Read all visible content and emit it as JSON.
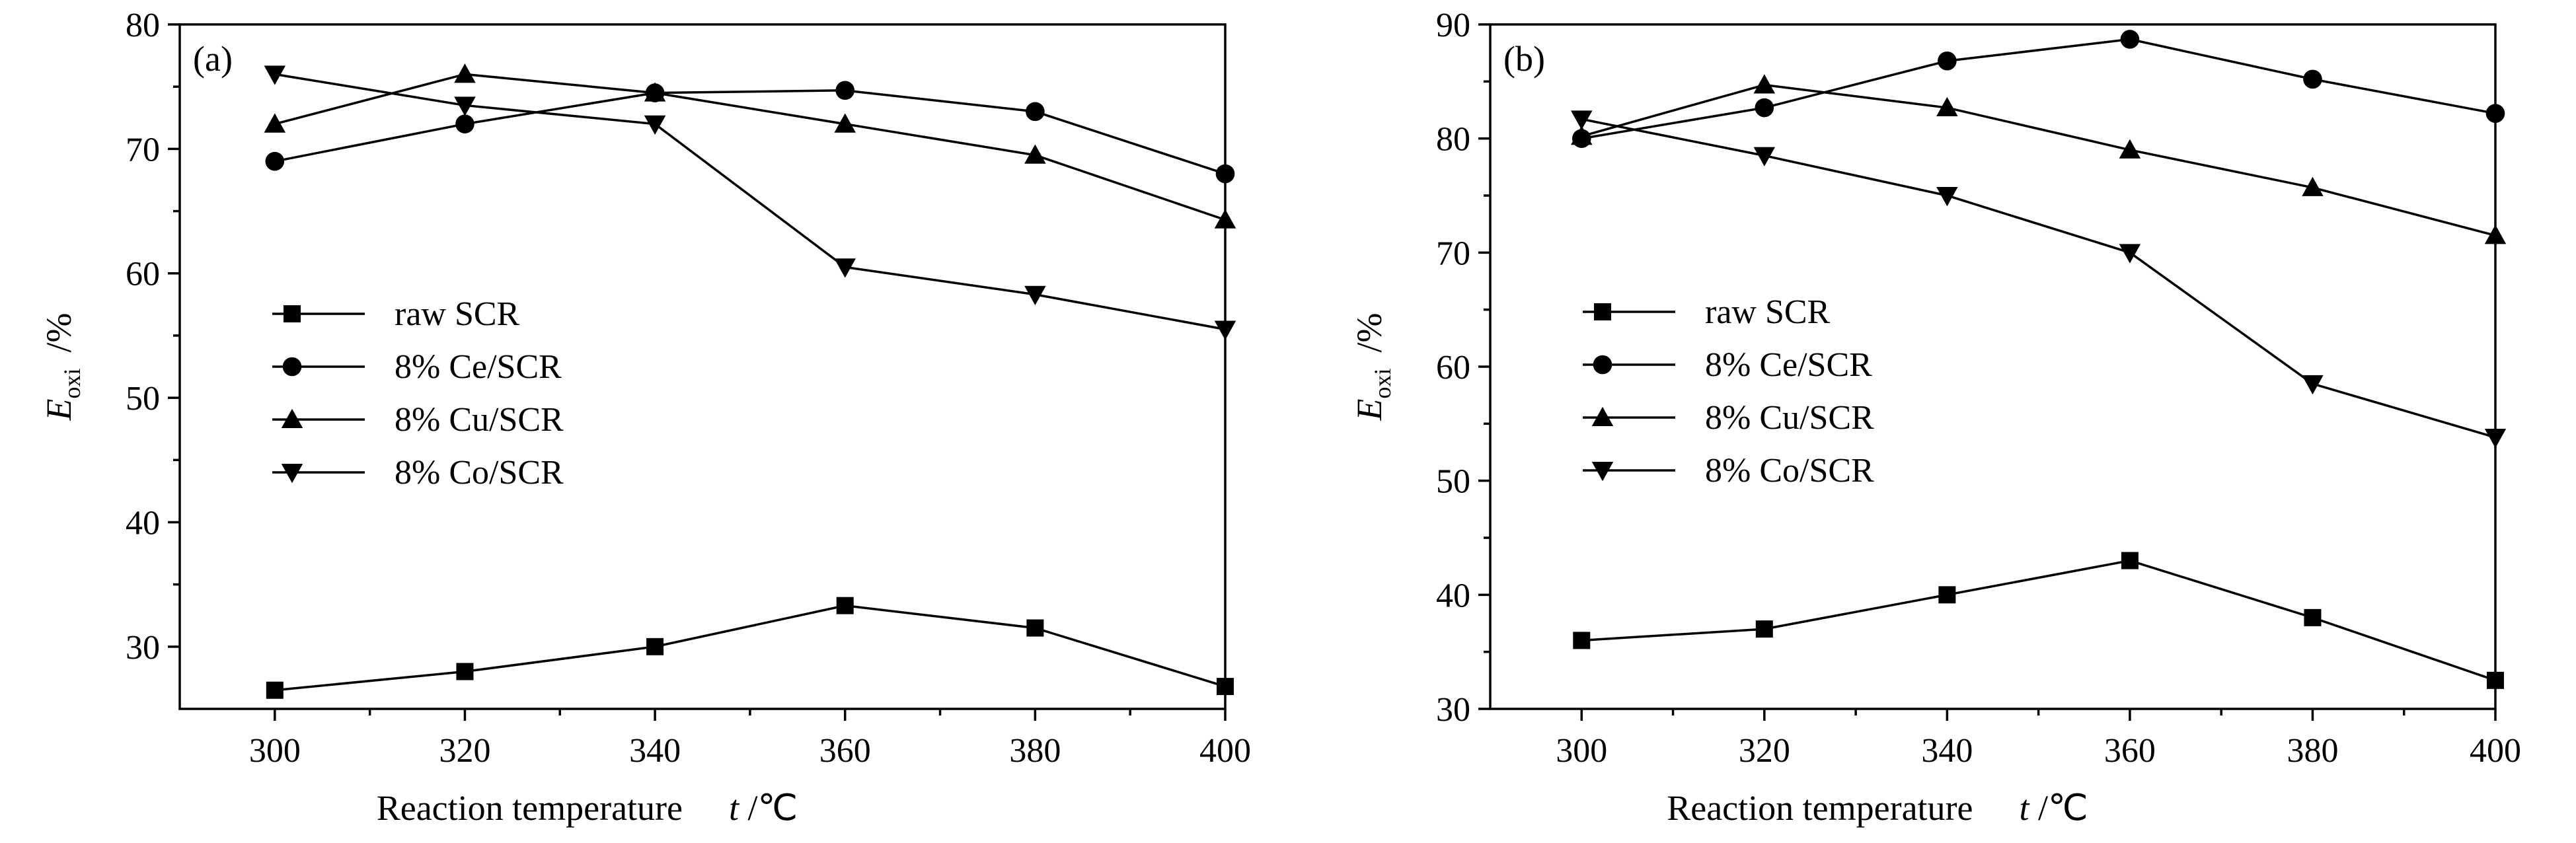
{
  "chart_data": [
    {
      "type": "line",
      "panel_label": "(a)",
      "xlabel": "Reaction temperature",
      "xunit_symbol": "t",
      "xunit": " /℃",
      "ylabel_symbol": "E",
      "ylabel_subscript": "oxi",
      "ylabel_unit": "/%",
      "x": [
        300,
        320,
        340,
        360,
        380,
        400
      ],
      "xticks": [
        300,
        320,
        340,
        360,
        380,
        400
      ],
      "xlim": [
        290,
        400
      ],
      "ylim": [
        25,
        80
      ],
      "yticks": [
        30,
        40,
        50,
        60,
        70,
        80
      ],
      "legend_position": "center-left",
      "series": [
        {
          "name": "raw SCR",
          "marker": "square",
          "values": [
            26.5,
            28,
            30,
            33.3,
            31.5,
            26.8
          ]
        },
        {
          "name": "8% Ce/SCR",
          "marker": "circle",
          "values": [
            69,
            72,
            74.5,
            74.7,
            73,
            68
          ]
        },
        {
          "name": "8% Cu/SCR",
          "marker": "triangle-up",
          "values": [
            72,
            76,
            74.5,
            72,
            69.5,
            64.3
          ]
        },
        {
          "name": "8% Co/SCR",
          "marker": "triangle-down",
          "values": [
            76,
            73.5,
            72,
            60.5,
            58.3,
            55.5
          ]
        }
      ]
    },
    {
      "type": "line",
      "panel_label": "(b)",
      "xlabel": "Reaction temperature",
      "xunit_symbol": "t",
      "xunit": " /℃",
      "ylabel_symbol": "E",
      "ylabel_subscript": "oxi",
      "ylabel_unit": "/%",
      "x": [
        300,
        320,
        340,
        360,
        380,
        400
      ],
      "xticks": [
        300,
        320,
        340,
        360,
        380,
        400
      ],
      "xlim": [
        290,
        400
      ],
      "ylim": [
        30,
        90
      ],
      "yticks": [
        30,
        40,
        50,
        60,
        70,
        80,
        90
      ],
      "legend_position": "center-left",
      "series": [
        {
          "name": "raw SCR",
          "marker": "square",
          "values": [
            36,
            37,
            40,
            43,
            38,
            32.5
          ]
        },
        {
          "name": "8% Ce/SCR",
          "marker": "circle",
          "values": [
            80,
            82.7,
            86.8,
            88.7,
            85.2,
            82.2
          ]
        },
        {
          "name": "8% Cu/SCR",
          "marker": "triangle-up",
          "values": [
            80.2,
            84.7,
            82.7,
            79,
            75.7,
            71.5
          ]
        },
        {
          "name": "8% Co/SCR",
          "marker": "triangle-down",
          "values": [
            81.7,
            78.5,
            75,
            70,
            58.5,
            53.8
          ]
        }
      ]
    }
  ]
}
